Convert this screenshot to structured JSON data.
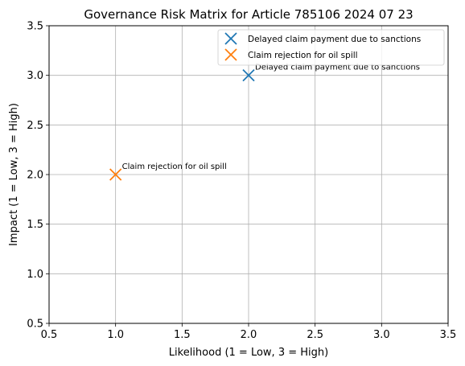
{
  "chart_data": {
    "type": "scatter",
    "title": "Governance Risk Matrix for Article 785106 2024 07 23",
    "xlabel": "Likelihood (1 = Low, 3 = High)",
    "ylabel": "Impact (1 = Low, 3 = High)",
    "xlim": [
      0.5,
      3.5
    ],
    "ylim": [
      0.5,
      3.5
    ],
    "xticks": [
      "0.5",
      "1.0",
      "1.5",
      "2.0",
      "2.5",
      "3.0",
      "3.5"
    ],
    "yticks": [
      "0.5",
      "1.0",
      "1.5",
      "2.0",
      "2.5",
      "3.0",
      "3.5"
    ],
    "grid": true,
    "legend_position": "top-right",
    "marker": "x",
    "series": [
      {
        "name": "Delayed claim payment due to sanctions",
        "color": "#1f77b4",
        "x": [
          2
        ],
        "y": [
          3
        ],
        "annotation": "Delayed claim payment due to sanctions"
      },
      {
        "name": "Claim rejection for oil spill",
        "color": "#ff7f0e",
        "x": [
          1
        ],
        "y": [
          2
        ],
        "annotation": "Claim rejection for oil spill"
      }
    ]
  }
}
